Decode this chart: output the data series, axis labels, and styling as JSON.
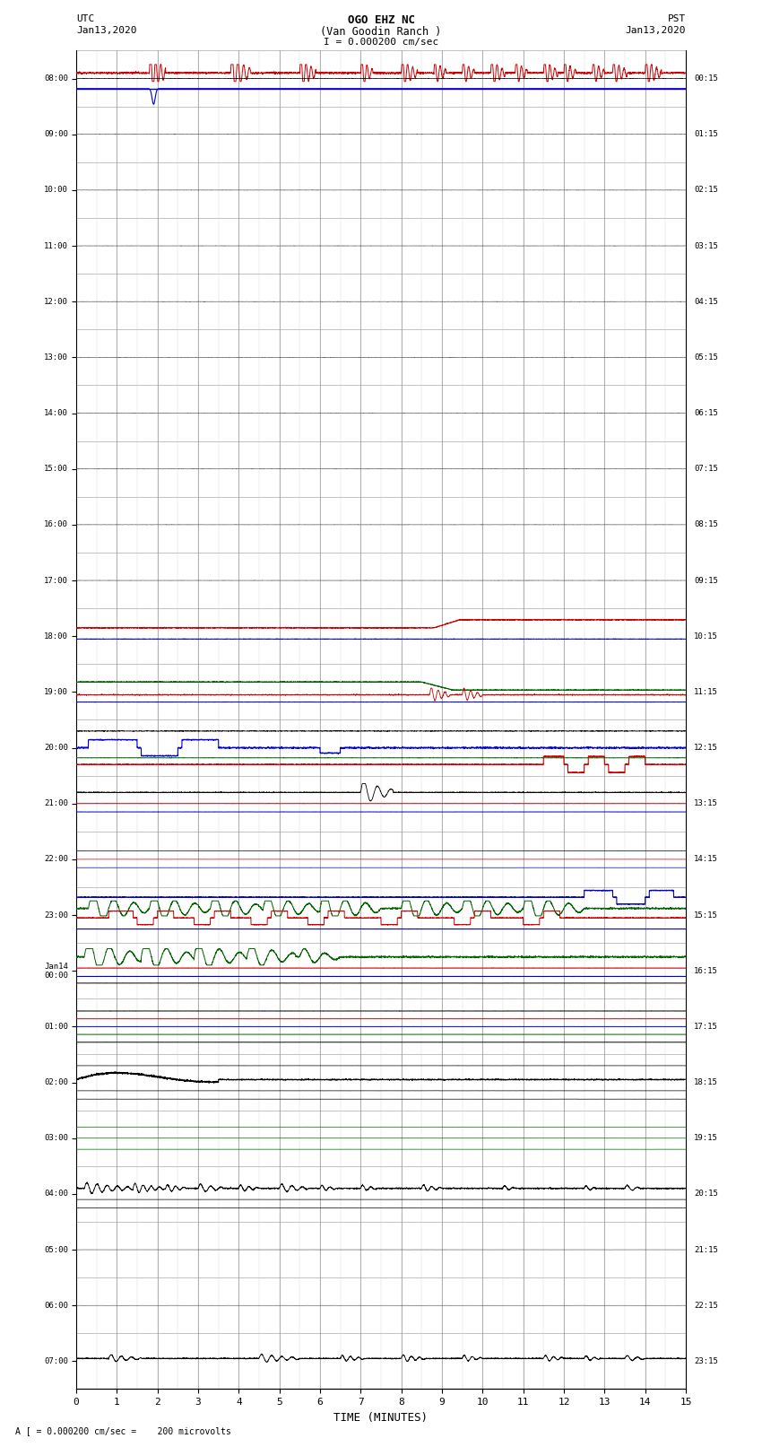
{
  "title_line1": "OGO EHZ NC",
  "title_line2": "(Van Goodin Ranch )",
  "scale_label": "I = 0.000200 cm/sec",
  "bottom_label": "A [ = 0.000200 cm/sec =    200 microvolts",
  "utc_left1": "UTC",
  "utc_left2": "Jan13,2020",
  "pst_right1": "PST",
  "pst_right2": "Jan13,2020",
  "xlabel": "TIME (MINUTES)",
  "bg_color": "#ffffff",
  "utc_labels": [
    "08:00",
    "09:00",
    "10:00",
    "11:00",
    "12:00",
    "13:00",
    "14:00",
    "15:00",
    "16:00",
    "17:00",
    "18:00",
    "19:00",
    "20:00",
    "21:00",
    "22:00",
    "23:00",
    "Jan14\n00:00",
    "01:00",
    "02:00",
    "03:00",
    "04:00",
    "05:00",
    "06:00",
    "07:00"
  ],
  "pst_labels": [
    "00:15",
    "01:15",
    "02:15",
    "03:15",
    "04:15",
    "05:15",
    "06:15",
    "07:15",
    "08:15",
    "09:15",
    "10:15",
    "11:15",
    "12:15",
    "13:15",
    "14:15",
    "15:15",
    "16:15",
    "17:15",
    "18:15",
    "19:15",
    "20:15",
    "21:15",
    "22:15",
    "23:15"
  ]
}
